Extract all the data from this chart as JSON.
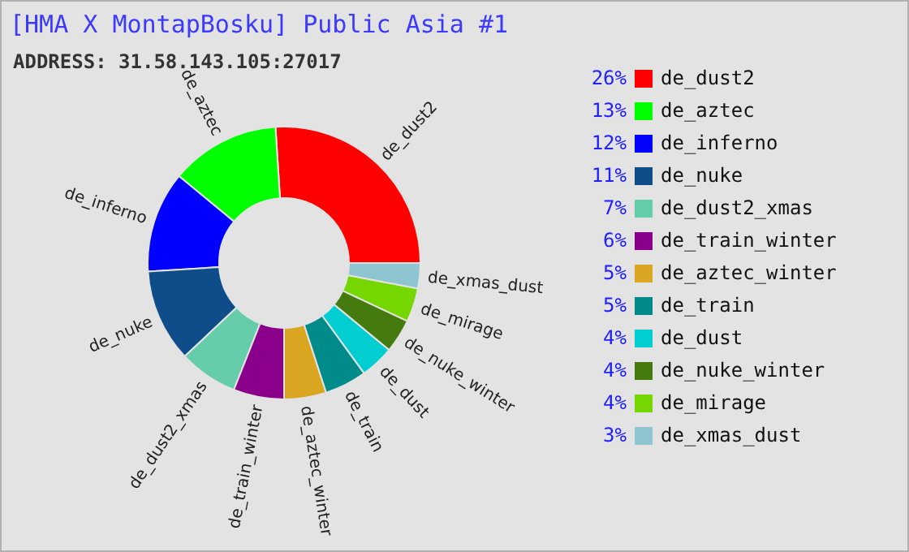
{
  "chart_data": {
    "type": "donut",
    "title": "[HMA X MontapBosku] Public Asia #1",
    "subtitle": "ADDRESS: 31.58.143.105:27017",
    "categories": [
      "de_dust2",
      "de_aztec",
      "de_inferno",
      "de_nuke",
      "de_dust2_xmas",
      "de_train_winter",
      "de_aztec_winter",
      "de_train",
      "de_dust",
      "de_nuke_winter",
      "de_mirage",
      "de_xmas_dust"
    ],
    "values": [
      26,
      13,
      12,
      11,
      7,
      6,
      5,
      5,
      4,
      4,
      4,
      3
    ],
    "value_labels": [
      "26%",
      "13%",
      "12%",
      "11%",
      "7%",
      "6%",
      "5%",
      "5%",
      "4%",
      "4%",
      "4%",
      "3%"
    ],
    "colors": [
      "#ff0000",
      "#00ff00",
      "#0000ff",
      "#0f4c8a",
      "#66cdaa",
      "#8b008b",
      "#daa520",
      "#008b8b",
      "#00ced1",
      "#457a0e",
      "#76d600",
      "#8ec5d1"
    ],
    "legend": "right"
  }
}
